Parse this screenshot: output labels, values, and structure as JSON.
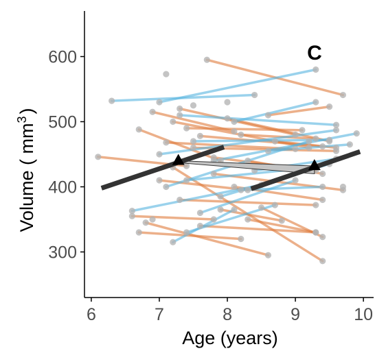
{
  "chart_data": {
    "type": "scatter",
    "panel_label": "C",
    "xlabel": "Age (years)",
    "ylabel_main": "Volume ( mm",
    "ylabel_sup": "3",
    "ylabel_tail": ")",
    "xlim": [
      5.9,
      10.15
    ],
    "ylim": [
      230,
      670
    ],
    "x_ticks": [
      6,
      7,
      8,
      9,
      10
    ],
    "y_ticks": [
      300,
      400,
      500,
      600
    ],
    "grid": false,
    "colors": {
      "orange": "#e07b3c",
      "blue": "#56b4e0",
      "point": "#b3b3b3",
      "mean": "#333333",
      "shade": "#c4c4c4"
    },
    "series": [
      {
        "group": "orange",
        "values": [
          [
            6.1,
            446
          ],
          [
            7.4,
            432
          ]
        ]
      },
      {
        "group": "orange",
        "values": [
          [
            6.6,
            355
          ],
          [
            7.8,
            350
          ]
        ]
      },
      {
        "group": "orange",
        "values": [
          [
            6.7,
            330
          ],
          [
            8.2,
            320
          ]
        ]
      },
      {
        "group": "orange",
        "values": [
          [
            6.7,
            488
          ],
          [
            7.9,
            440
          ]
        ]
      },
      {
        "group": "orange",
        "values": [
          [
            6.8,
            345
          ],
          [
            8.6,
            295
          ]
        ]
      },
      {
        "group": "orange",
        "values": [
          [
            6.9,
            515
          ],
          [
            8.1,
            485
          ]
        ]
      },
      {
        "group": "orange",
        "values": [
          [
            7.0,
            410
          ],
          [
            8.3,
            395
          ]
        ]
      },
      {
        "group": "orange",
        "values": [
          [
            7.1,
            468
          ],
          [
            9.0,
            458
          ]
        ]
      },
      {
        "group": "orange",
        "values": [
          [
            7.2,
            500
          ],
          [
            9.2,
            460
          ]
        ]
      },
      {
        "group": "orange",
        "values": [
          [
            7.3,
            520
          ],
          [
            9.0,
            480
          ]
        ]
      },
      {
        "group": "orange",
        "values": [
          [
            7.3,
            380
          ],
          [
            9.3,
            372
          ]
        ]
      },
      {
        "group": "orange",
        "values": [
          [
            7.4,
            490
          ],
          [
            9.1,
            487
          ]
        ]
      },
      {
        "group": "orange",
        "values": [
          [
            7.5,
            460
          ],
          [
            9.6,
            455
          ]
        ]
      },
      {
        "group": "orange",
        "values": [
          [
            7.6,
            478
          ],
          [
            9.4,
            462
          ]
        ]
      },
      {
        "group": "orange",
        "values": [
          [
            7.7,
            595
          ],
          [
            9.7,
            541
          ]
        ]
      },
      {
        "group": "orange",
        "values": [
          [
            7.6,
            340
          ],
          [
            9.3,
            330
          ]
        ]
      },
      {
        "group": "orange",
        "values": [
          [
            7.8,
            420
          ],
          [
            9.7,
            395
          ]
        ]
      },
      {
        "group": "orange",
        "values": [
          [
            7.8,
            445
          ],
          [
            9.3,
            425
          ]
        ]
      },
      {
        "group": "orange",
        "values": [
          [
            8.0,
            505
          ],
          [
            9.5,
            470
          ]
        ]
      },
      {
        "group": "orange",
        "values": [
          [
            8.1,
            400
          ],
          [
            9.4,
            380
          ]
        ]
      },
      {
        "group": "orange",
        "values": [
          [
            8.2,
            480
          ],
          [
            9.3,
            474
          ]
        ]
      },
      {
        "group": "orange",
        "values": [
          [
            8.3,
            440
          ],
          [
            9.4,
            420
          ]
        ]
      },
      {
        "group": "orange",
        "values": [
          [
            8.5,
            368
          ],
          [
            9.4,
            323
          ]
        ]
      },
      {
        "group": "orange",
        "values": [
          [
            8.3,
            350
          ],
          [
            9.3,
            330
          ]
        ]
      },
      {
        "group": "orange",
        "values": [
          [
            7.2,
            430
          ],
          [
            9.4,
            286
          ]
        ]
      },
      {
        "group": "orange",
        "values": [
          [
            8.6,
            510
          ],
          [
            9.5,
            523
          ]
        ]
      },
      {
        "group": "orange",
        "values": [
          [
            8.7,
            470
          ],
          [
            9.6,
            460
          ]
        ]
      },
      {
        "group": "orange",
        "values": [
          [
            7.9,
            365
          ],
          [
            8.8,
            348
          ]
        ]
      },
      {
        "group": "blue",
        "values": [
          [
            6.3,
            532
          ],
          [
            8.4,
            541
          ]
        ]
      },
      {
        "group": "blue",
        "values": [
          [
            6.6,
            363
          ],
          [
            8.5,
            403
          ]
        ]
      },
      {
        "group": "blue",
        "values": [
          [
            7.0,
            530
          ],
          [
            9.3,
            580
          ]
        ]
      },
      {
        "group": "blue",
        "values": [
          [
            7.0,
            450
          ],
          [
            9.6,
            487
          ]
        ]
      },
      {
        "group": "blue",
        "values": [
          [
            7.1,
            400
          ],
          [
            9.2,
            470
          ]
        ]
      },
      {
        "group": "blue",
        "values": [
          [
            7.2,
            315
          ],
          [
            8.1,
            365
          ]
        ]
      },
      {
        "group": "blue",
        "values": [
          [
            7.3,
            510
          ],
          [
            9.6,
            495
          ]
        ]
      },
      {
        "group": "blue",
        "values": [
          [
            7.4,
            410
          ],
          [
            9.1,
            428
          ]
        ]
      },
      {
        "group": "blue",
        "values": [
          [
            7.5,
            470
          ],
          [
            9.5,
            472
          ]
        ]
      },
      {
        "group": "blue",
        "values": [
          [
            7.6,
            360
          ],
          [
            9.0,
            410
          ]
        ]
      },
      {
        "group": "blue",
        "values": [
          [
            7.8,
            440
          ],
          [
            9.9,
            482
          ]
        ]
      },
      {
        "group": "blue",
        "values": [
          [
            7.9,
            385
          ],
          [
            9.5,
            435
          ]
        ]
      },
      {
        "group": "blue",
        "values": [
          [
            8.1,
            500
          ],
          [
            9.3,
            530
          ]
        ]
      },
      {
        "group": "blue",
        "values": [
          [
            8.4,
            425
          ],
          [
            9.6,
            443
          ]
        ]
      },
      {
        "group": "blue",
        "values": [
          [
            8.6,
            455
          ],
          [
            9.8,
            465
          ]
        ]
      },
      {
        "group": "blue",
        "values": [
          [
            7.4,
            330
          ],
          [
            8.7,
            372
          ]
        ]
      },
      {
        "group": "blue",
        "values": [
          [
            8.2,
            395
          ],
          [
            9.4,
            400
          ]
        ]
      }
    ],
    "isolated_points": [
      [
        7.1,
        573
      ],
      [
        8.0,
        530
      ],
      [
        6.9,
        350
      ],
      [
        7.5,
        525
      ],
      [
        9.7,
        400
      ]
    ],
    "mean_lines": [
      {
        "values": [
          [
            6.15,
            398
          ],
          [
            7.95,
            461
          ]
        ]
      },
      {
        "values": [
          [
            8.35,
            397
          ],
          [
            9.95,
            454
          ]
        ]
      }
    ],
    "mean_markers": [
      [
        7.28,
        440
      ],
      [
        9.28,
        432
      ]
    ],
    "shade_polygon": [
      [
        7.28,
        440
      ],
      [
        9.28,
        432
      ],
      [
        9.28,
        420
      ],
      [
        7.28,
        437
      ]
    ]
  }
}
